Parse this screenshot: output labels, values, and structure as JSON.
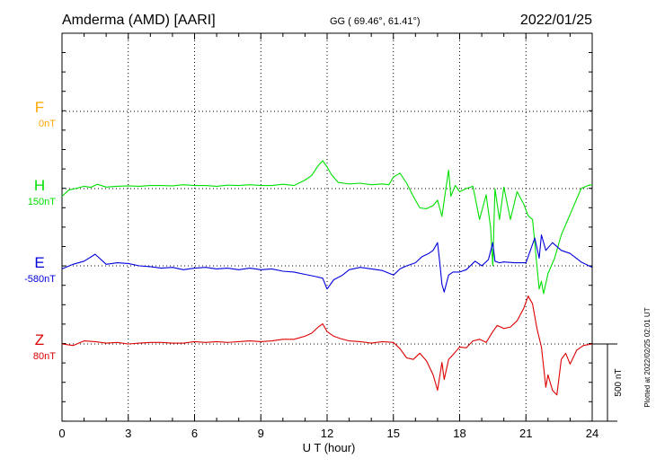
{
  "header": {
    "station": "Amderma (AMD)  [AARI]",
    "coords": "GG ( 69.46°,  61.41°)",
    "date": "2022/01/25"
  },
  "footer_note": "Plotted at 2022/02/25 02:01  UT",
  "scale_label": "500 nT",
  "colors": {
    "F": "#ffa500",
    "H": "#00e000",
    "E": "#0000dd",
    "Z": "#dd0000",
    "grid": "#000000"
  },
  "chart_data": {
    "type": "line",
    "xlabel": "U T (hour)",
    "xlim": [
      0,
      24
    ],
    "x_ticks": [
      "0",
      "3",
      "6",
      "9",
      "12",
      "15",
      "18",
      "21",
      "24"
    ],
    "scale_nT": 500,
    "series": [
      {
        "name": "F",
        "baseline_label": "0nT",
        "color": "#ffa500",
        "x": [],
        "values": []
      },
      {
        "name": "H",
        "baseline_label": "150nT",
        "color": "#00e000",
        "x": [
          0,
          0.3,
          0.6,
          1.0,
          1.3,
          1.6,
          2.0,
          2.5,
          3.0,
          3.5,
          4.0,
          4.5,
          5.0,
          5.5,
          6.0,
          6.5,
          7.0,
          7.5,
          8.0,
          8.5,
          9.0,
          9.5,
          10.0,
          10.5,
          11.0,
          11.3,
          11.6,
          11.8,
          12.0,
          12.2,
          12.5,
          13.0,
          13.5,
          14.0,
          14.5,
          14.8,
          15.0,
          15.3,
          15.6,
          15.9,
          16.2,
          16.5,
          16.8,
          17.0,
          17.2,
          17.4,
          17.5,
          17.6,
          17.8,
          18.0,
          18.3,
          18.6,
          18.9,
          19.2,
          19.4,
          19.5,
          19.6,
          19.8,
          20.0,
          20.3,
          20.6,
          20.9,
          21.1,
          21.3,
          21.4,
          21.5,
          21.6,
          21.7,
          21.8,
          22.0,
          22.3,
          22.6,
          22.9,
          23.2,
          23.5,
          23.8,
          24.0
        ],
        "values": [
          -50,
          -10,
          0,
          15,
          8,
          28,
          10,
          15,
          18,
          15,
          20,
          20,
          18,
          25,
          20,
          20,
          15,
          22,
          20,
          25,
          20,
          20,
          28,
          20,
          55,
          85,
          150,
          180,
          140,
          90,
          40,
          30,
          35,
          25,
          30,
          25,
          75,
          100,
          35,
          -50,
          -125,
          -130,
          -110,
          -75,
          -180,
          25,
          120,
          -50,
          20,
          -20,
          0,
          15,
          -200,
          -40,
          -250,
          -500,
          0,
          -200,
          10,
          -200,
          -20,
          -100,
          -175,
          -200,
          -350,
          -500,
          -650,
          -600,
          -680,
          -550,
          -450,
          -300,
          -200,
          -100,
          0,
          20,
          25
        ]
      },
      {
        "name": "E",
        "baseline_label": "-580nT",
        "color": "#0000dd",
        "x": [
          0,
          0.5,
          1.0,
          1.5,
          2.0,
          2.5,
          3.0,
          3.5,
          4.0,
          4.5,
          5.0,
          5.5,
          6.0,
          6.5,
          7.0,
          7.5,
          8.0,
          8.5,
          9.0,
          9.5,
          10.0,
          10.5,
          11.0,
          11.5,
          11.8,
          12.0,
          12.3,
          12.7,
          13.0,
          13.5,
          14.0,
          14.5,
          15.0,
          15.3,
          15.6,
          16.0,
          16.3,
          16.6,
          16.8,
          17.0,
          17.1,
          17.2,
          17.3,
          17.5,
          17.7,
          18.0,
          18.3,
          18.7,
          19.0,
          19.3,
          19.5,
          19.6,
          19.8,
          20.0,
          20.5,
          21.0,
          21.2,
          21.4,
          21.6,
          21.7,
          21.9,
          22.2,
          22.6,
          23.0,
          23.5,
          24.0
        ],
        "values": [
          -20,
          10,
          30,
          75,
          10,
          20,
          15,
          0,
          -5,
          -15,
          -10,
          -25,
          -15,
          -10,
          -20,
          -15,
          -25,
          -15,
          -25,
          -20,
          -35,
          -40,
          -55,
          -70,
          -80,
          -150,
          -90,
          -60,
          -25,
          -10,
          -20,
          -30,
          -60,
          -20,
          0,
          20,
          60,
          80,
          100,
          150,
          20,
          -120,
          -170,
          -60,
          -40,
          -40,
          -25,
          30,
          0,
          40,
          150,
          30,
          20,
          25,
          20,
          20,
          100,
          180,
          50,
          200,
          100,
          150,
          100,
          80,
          25,
          -10
        ]
      },
      {
        "name": "Z",
        "baseline_label": "80nT",
        "color": "#dd0000",
        "x": [
          0,
          0.5,
          1.0,
          1.5,
          2.0,
          2.5,
          3.0,
          3.5,
          4.0,
          4.5,
          5.0,
          5.5,
          6.0,
          6.5,
          7.0,
          7.5,
          8.0,
          8.5,
          9.0,
          9.5,
          10.0,
          10.5,
          11.0,
          11.3,
          11.6,
          11.8,
          12.0,
          12.3,
          12.6,
          13.0,
          13.5,
          14.0,
          14.5,
          15.0,
          15.3,
          15.6,
          15.9,
          16.2,
          16.5,
          16.8,
          17.0,
          17.2,
          17.3,
          17.5,
          17.7,
          18.0,
          18.3,
          18.6,
          18.9,
          19.2,
          19.5,
          19.7,
          20.0,
          20.3,
          20.6,
          20.9,
          21.1,
          21.3,
          21.5,
          21.6,
          21.7,
          21.9,
          22.0,
          22.2,
          22.4,
          22.6,
          22.8,
          23.0,
          23.3,
          23.6,
          24.0
        ],
        "values": [
          0,
          -10,
          20,
          15,
          5,
          10,
          0,
          5,
          10,
          10,
          5,
          5,
          15,
          10,
          15,
          10,
          15,
          20,
          15,
          20,
          30,
          30,
          50,
          70,
          110,
          130,
          80,
          50,
          35,
          20,
          15,
          5,
          15,
          10,
          -30,
          -90,
          -100,
          -60,
          -110,
          -200,
          -300,
          -120,
          -230,
          -100,
          -70,
          -20,
          -25,
          20,
          30,
          10,
          80,
          120,
          100,
          110,
          150,
          230,
          310,
          260,
          100,
          40,
          -20,
          -280,
          -200,
          -300,
          -330,
          -100,
          -60,
          -130,
          -40,
          -10,
          0
        ]
      }
    ]
  }
}
